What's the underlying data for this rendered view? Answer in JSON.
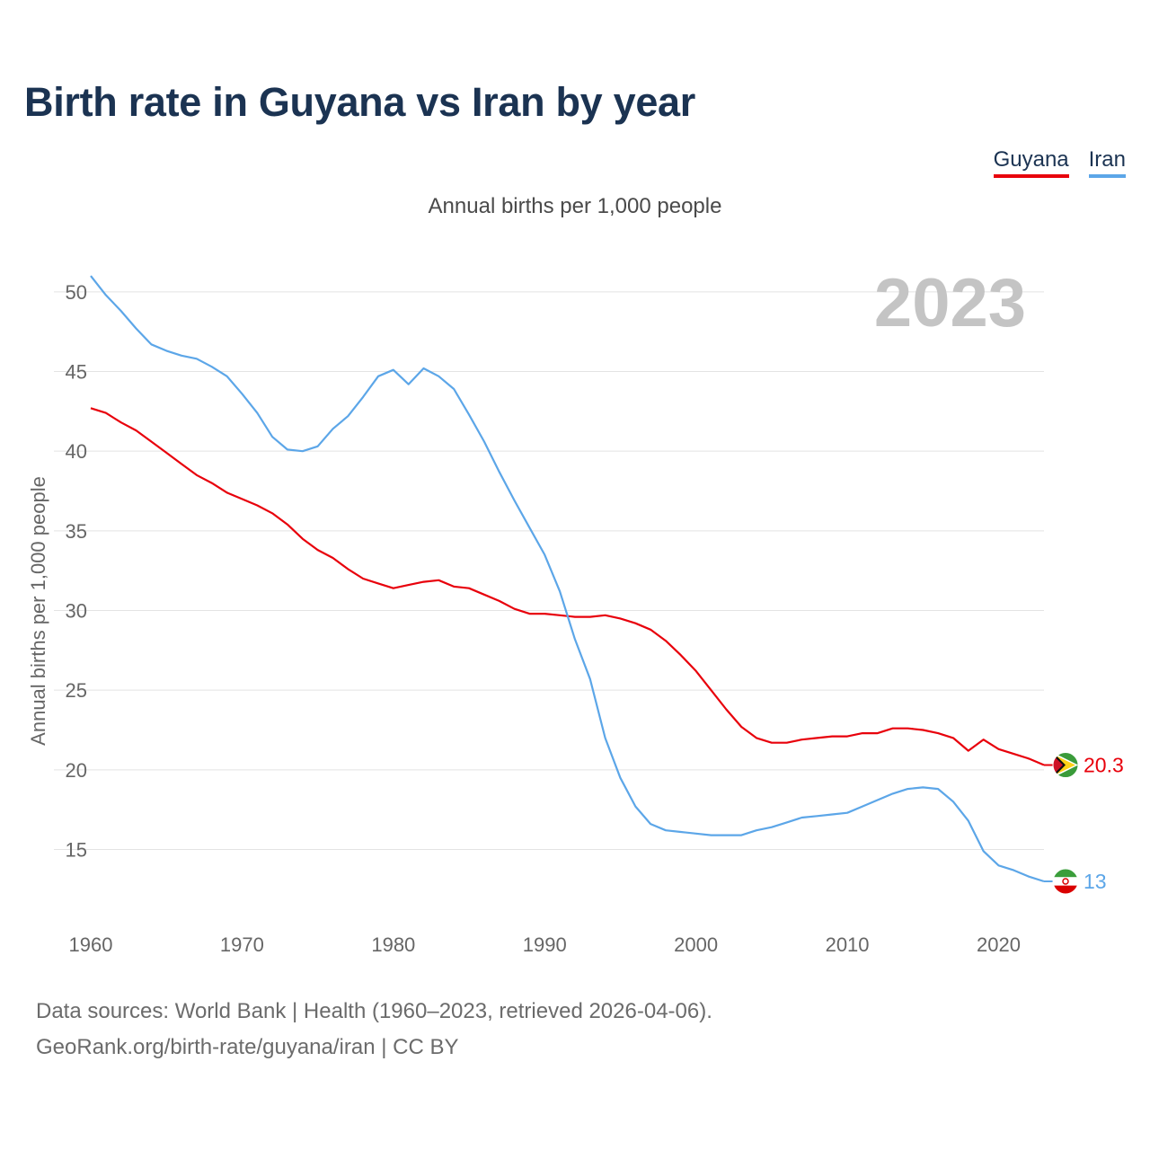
{
  "title": "Birth rate in Guyana vs Iran by year",
  "subtitle": "Annual births per 1,000 people",
  "year_label": "2023",
  "legend": [
    {
      "name": "Guyana",
      "color": "#e8000b"
    },
    {
      "name": "Iran",
      "color": "#5ca6e8"
    }
  ],
  "footer": {
    "line1": "Data sources: World Bank | Health (1960–2023, retrieved 2026-04-06).",
    "line2": "GeoRank.org/birth-rate/guyana/iran | CC BY"
  },
  "chart_data": {
    "type": "line",
    "title": "Birth rate in Guyana vs Iran by year",
    "xlabel": "",
    "ylabel": "Annual births per 1,000 people",
    "xlim": [
      1960,
      2023
    ],
    "ylim": [
      10.8,
      51.4
    ],
    "x_ticks": [
      1960,
      1970,
      1980,
      1990,
      2000,
      2010,
      2020
    ],
    "y_ticks": [
      15,
      20,
      25,
      30,
      35,
      40,
      45,
      50
    ],
    "grid": true,
    "x": [
      1960,
      1961,
      1962,
      1963,
      1964,
      1965,
      1966,
      1967,
      1968,
      1969,
      1970,
      1971,
      1972,
      1973,
      1974,
      1975,
      1976,
      1977,
      1978,
      1979,
      1980,
      1981,
      1982,
      1983,
      1984,
      1985,
      1986,
      1987,
      1988,
      1989,
      1990,
      1991,
      1992,
      1993,
      1994,
      1995,
      1996,
      1997,
      1998,
      1999,
      2000,
      2001,
      2002,
      2003,
      2004,
      2005,
      2006,
      2007,
      2008,
      2009,
      2010,
      2011,
      2012,
      2013,
      2014,
      2015,
      2016,
      2017,
      2018,
      2019,
      2020,
      2021,
      2022,
      2023
    ],
    "series": [
      {
        "name": "Guyana",
        "color": "#e8000b",
        "end_label": "20.3",
        "values": [
          42.7,
          42.4,
          41.8,
          41.3,
          40.6,
          39.9,
          39.2,
          38.5,
          38.0,
          37.4,
          37.0,
          36.6,
          36.1,
          35.4,
          34.5,
          33.8,
          33.3,
          32.6,
          32.0,
          31.7,
          31.4,
          31.6,
          31.8,
          31.9,
          31.5,
          31.4,
          31.0,
          30.6,
          30.1,
          29.8,
          29.8,
          29.7,
          29.6,
          29.6,
          29.7,
          29.5,
          29.2,
          28.8,
          28.1,
          27.2,
          26.2,
          25.0,
          23.8,
          22.7,
          22.0,
          21.7,
          21.7,
          21.9,
          22.0,
          22.1,
          22.1,
          22.3,
          22.3,
          22.6,
          22.6,
          22.5,
          22.3,
          22.0,
          21.2,
          21.9,
          21.3,
          21.0,
          20.7,
          20.3
        ]
      },
      {
        "name": "Iran",
        "color": "#5ca6e8",
        "end_label": "13",
        "values": [
          51.0,
          49.8,
          48.8,
          47.7,
          46.7,
          46.3,
          46.0,
          45.8,
          45.3,
          44.7,
          43.6,
          42.4,
          40.9,
          40.1,
          40.0,
          40.3,
          41.4,
          42.2,
          43.4,
          44.7,
          45.1,
          44.2,
          45.2,
          44.7,
          43.9,
          42.3,
          40.6,
          38.7,
          36.9,
          35.2,
          33.5,
          31.2,
          28.2,
          25.7,
          22.0,
          19.5,
          17.7,
          16.6,
          16.2,
          16.1,
          16.0,
          15.9,
          15.9,
          15.9,
          16.2,
          16.4,
          16.7,
          17.0,
          17.1,
          17.2,
          17.3,
          17.7,
          18.1,
          18.5,
          18.8,
          18.9,
          18.8,
          18.0,
          16.8,
          14.9,
          14.0,
          13.7,
          13.3,
          13.0
        ]
      }
    ]
  }
}
